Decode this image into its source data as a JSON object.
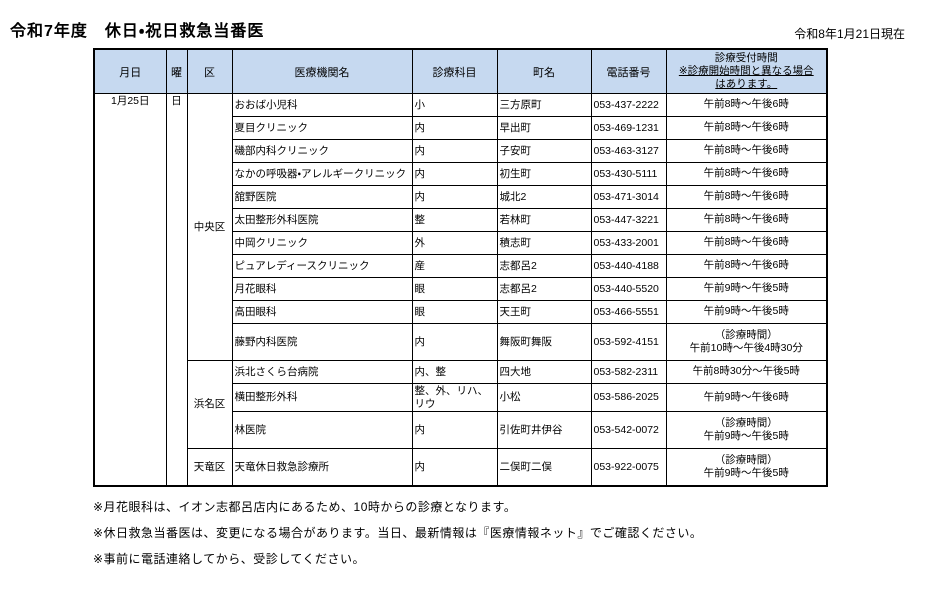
{
  "page": {
    "title": "令和7年度　休日・祝日救急当番医",
    "as_of": "令和8年1月21日現在"
  },
  "table": {
    "headers": [
      "月日",
      "曜",
      "区",
      "医療機関名",
      "診療科目",
      "町名",
      "電話番号"
    ],
    "reception_header_lines": [
      "診療受付時間",
      "※診療開始時間と異なる場合",
      "はあります。"
    ],
    "date": "1月25日",
    "day": "日",
    "wards": [
      {
        "name": "中央区",
        "rows": [
          {
            "institution": "おおば小児科",
            "department": "小",
            "town": "三方原町",
            "phone": "053-437-2222",
            "hours": "午前8時～午後6時"
          },
          {
            "institution": "夏目クリニック",
            "department": "内",
            "town": "早出町",
            "phone": "053-469-1231",
            "hours": "午前8時～午後6時"
          },
          {
            "institution": "磯部内科クリニック",
            "department": "内",
            "town": "子安町",
            "phone": "053-463-3127",
            "hours": "午前8時～午後6時"
          },
          {
            "institution": "なかの呼吸器・アレルギークリニック",
            "department": "内",
            "town": "初生町",
            "phone": "053-430-5111",
            "hours": "午前8時～午後6時"
          },
          {
            "institution": "舘野医院",
            "department": "内",
            "town": "城北2",
            "phone": "053-471-3014",
            "hours": "午前8時～午後6時"
          },
          {
            "institution": "太田整形外科医院",
            "department": "整",
            "town": "若林町",
            "phone": "053-447-3221",
            "hours": "午前8時～午後6時"
          },
          {
            "institution": "中岡クリニック",
            "department": "外",
            "town": "積志町",
            "phone": "053-433-2001",
            "hours": "午前8時～午後6時"
          },
          {
            "institution": "ピュアレディースクリニック",
            "department": "産",
            "town": "志都呂2",
            "phone": "053-440-4188",
            "hours": "午前8時～午後6時"
          },
          {
            "institution": "月花眼科",
            "department": "眼",
            "town": "志都呂2",
            "phone": "053-440-5520",
            "hours": "午前9時～午後5時"
          },
          {
            "institution": "高田眼科",
            "department": "眼",
            "town": "天王町",
            "phone": "053-466-5551",
            "hours": "午前9時～午後5時"
          },
          {
            "institution": "藤野内科医院",
            "department": "内",
            "town": "舞阪町舞阪",
            "phone": "053-592-4151",
            "hours": "（診療時間）\n午前10時～午後4時30分",
            "tall": true
          }
        ]
      },
      {
        "name": "浜名区",
        "rows": [
          {
            "institution": "浜北さくら台病院",
            "department": "内、整",
            "town": "四大地",
            "phone": "053-582-2311",
            "hours": "午前8時30分～午後5時"
          },
          {
            "institution": "横田整形外科",
            "department": "整、外、リハ、リウ",
            "town": "小松",
            "phone": "053-586-2025",
            "hours": "午前9時～午後6時"
          },
          {
            "institution": "林医院",
            "department": "内",
            "town": "引佐町井伊谷",
            "phone": "053-542-0072",
            "hours": "（診療時間）\n午前9時～午後5時",
            "tall": true
          }
        ]
      },
      {
        "name": "天竜区",
        "rows": [
          {
            "institution": "天竜休日救急診療所",
            "department": "内",
            "town": "二俣町二俣",
            "phone": "053-922-0075",
            "hours": "（診療時間）\n午前9時～午後5時",
            "tall": true
          }
        ]
      }
    ]
  },
  "notes": [
    "※月花眼科は、イオン志都呂店内にあるため、10時からの診療となります。",
    "※休日救急当番医は、変更になる場合があります。当日、最新情報は『医療情報ネット』でご確認ください。",
    "※事前に電話連絡してから、受診してください。"
  ]
}
